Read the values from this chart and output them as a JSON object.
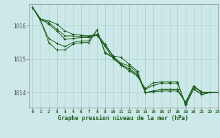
{
  "title": "Graphe pression niveau de la mer (hPa)",
  "bg_color": "#cce8e8",
  "grid_color": "#aacccc",
  "line_color": "#1a5c1a",
  "xlim": [
    -0.5,
    23
  ],
  "ylim": [
    1013.55,
    1016.65
  ],
  "yticks": [
    1014,
    1015,
    1016
  ],
  "xtick_labels": [
    "0",
    "1",
    "2",
    "3",
    "4",
    "5",
    "6",
    "7",
    "8",
    "9",
    "10",
    "11",
    "12",
    "13",
    "14",
    "15",
    "16",
    "17",
    "18",
    "19",
    "20",
    "21",
    "22",
    "23"
  ],
  "series": [
    [
      1016.55,
      1016.2,
      1016.15,
      1016.05,
      1015.85,
      1015.75,
      1015.72,
      1015.7,
      1015.75,
      1015.45,
      1015.1,
      1015.05,
      1014.85,
      1014.65,
      1014.0,
      1014.05,
      1014.1,
      1014.1,
      1014.1,
      1013.68,
      1014.2,
      1014.02,
      1014.0,
      1014.0
    ],
    [
      1016.55,
      1016.2,
      1016.1,
      1015.9,
      1015.7,
      1015.7,
      1015.68,
      1015.68,
      1015.72,
      1015.42,
      1015.08,
      1014.88,
      1014.8,
      1014.6,
      1014.0,
      1014.05,
      1014.1,
      1014.1,
      1014.1,
      1013.7,
      1014.2,
      1014.02,
      1014.0,
      1014.0
    ],
    [
      1016.55,
      1016.2,
      1016.05,
      1015.85,
      1015.6,
      1015.62,
      1015.65,
      1015.65,
      1015.72,
      1015.38,
      1015.02,
      1014.82,
      1014.72,
      1014.55,
      1014.0,
      1014.02,
      1014.05,
      1014.05,
      1014.05,
      1013.72,
      1014.18,
      1014.0,
      1014.0,
      1014.0
    ],
    [
      1016.55,
      1016.15,
      1015.62,
      1015.48,
      1015.38,
      1015.5,
      1015.55,
      1015.55,
      1015.88,
      1015.2,
      1015.08,
      1014.82,
      1014.65,
      1014.5,
      1014.1,
      1014.22,
      1014.28,
      1014.28,
      1014.28,
      1013.65,
      1014.12,
      1013.95,
      1014.0,
      1014.0
    ],
    [
      1016.55,
      1016.15,
      1015.5,
      1015.28,
      1015.28,
      1015.45,
      1015.5,
      1015.5,
      1015.88,
      1015.18,
      1015.05,
      1014.85,
      1014.7,
      1014.5,
      1014.12,
      1014.3,
      1014.32,
      1014.32,
      1014.32,
      1013.62,
      1014.1,
      1013.95,
      1014.0,
      1014.0
    ]
  ]
}
